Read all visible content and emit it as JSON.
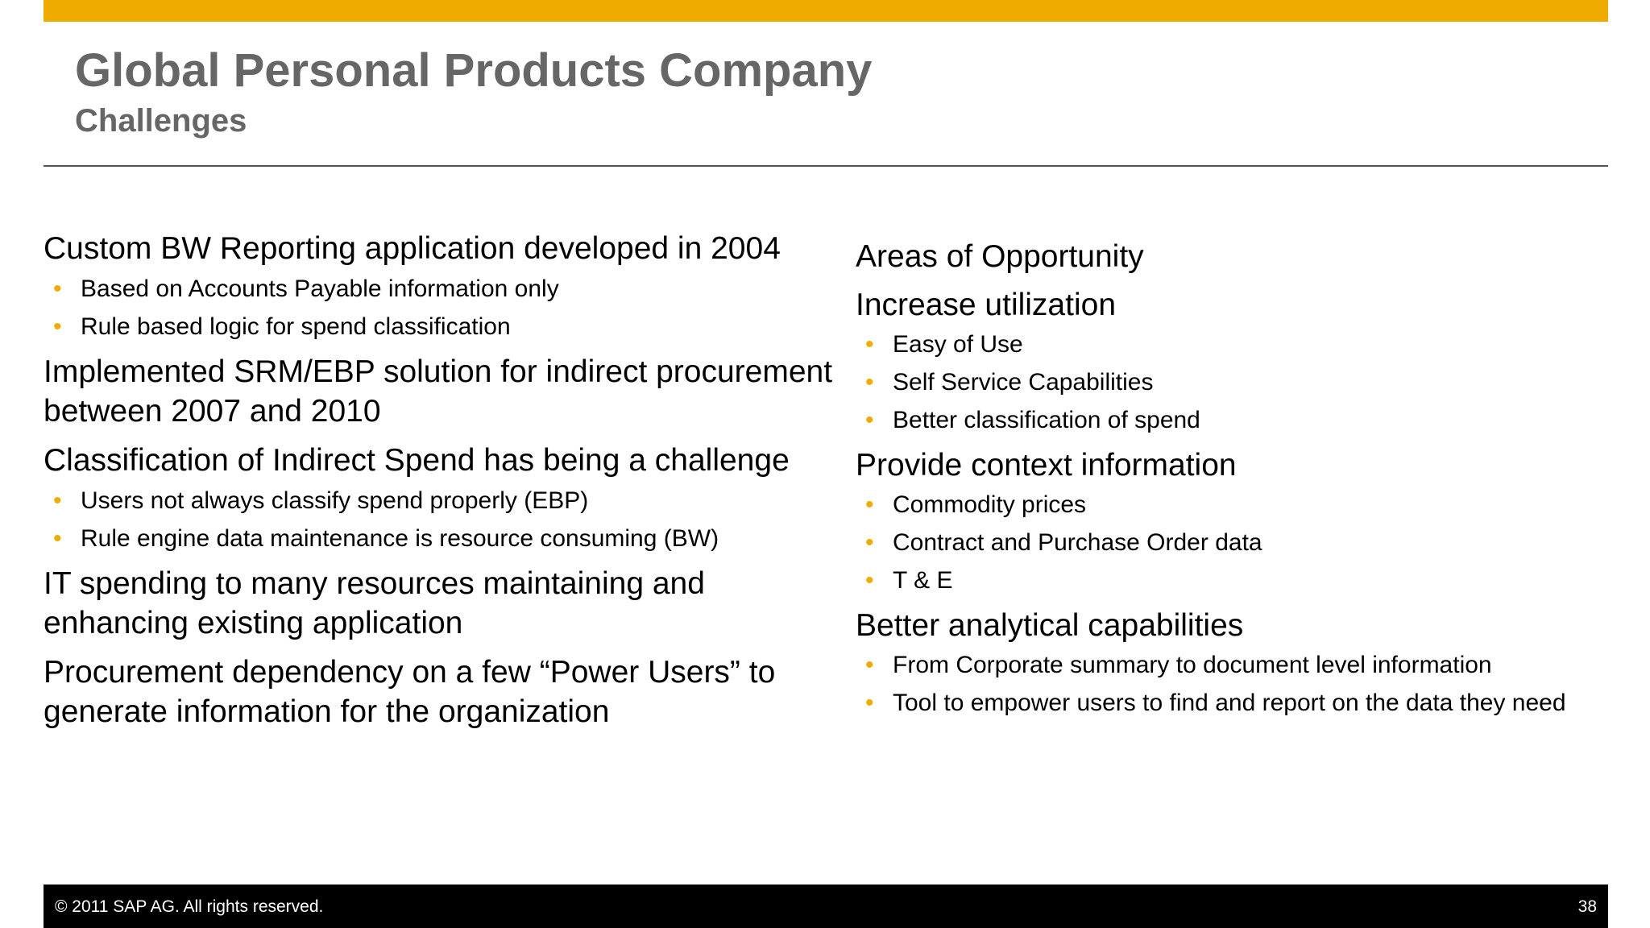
{
  "header": {
    "title": "Global Personal Products Company",
    "subtitle": "Challenges"
  },
  "colors": {
    "accent": "#f0ab00",
    "title_gray": "#666666",
    "footer_bg": "#000000"
  },
  "left_column": {
    "blocks": [
      {
        "text": "Custom BW Reporting application developed in 2004",
        "bullets": [
          "Based on Accounts Payable information only",
          "Rule based logic for spend classification"
        ]
      },
      {
        "text": "Implemented SRM/EBP solution for indirect procurement between 2007 and 2010",
        "bullets": []
      },
      {
        "text": "Classification of Indirect Spend has being a challenge",
        "bullets": [
          "Users not always classify spend properly (EBP)",
          "Rule engine data maintenance is resource consuming (BW)"
        ]
      },
      {
        "text": "IT spending to many resources maintaining and enhancing existing application",
        "bullets": []
      },
      {
        "text": "Procurement dependency on a few “Power Users” to generate information for the organization",
        "bullets": []
      }
    ]
  },
  "right_column": {
    "blocks": [
      {
        "text": "Areas of Opportunity",
        "bullets": []
      },
      {
        "text": "Increase utilization",
        "bullets": [
          "Easy of Use",
          "Self Service Capabilities",
          "Better classification of spend"
        ]
      },
      {
        "text": "Provide context information",
        "bullets": [
          "Commodity prices",
          "Contract and Purchase Order data",
          "T & E"
        ]
      },
      {
        "text": "Better analytical capabilities",
        "bullets": [
          "From Corporate summary to document level information",
          "Tool to empower users to find and report on the data they need"
        ]
      }
    ]
  },
  "footer": {
    "copyright": "©  2011 SAP AG. All rights reserved.",
    "page_number": "38"
  }
}
